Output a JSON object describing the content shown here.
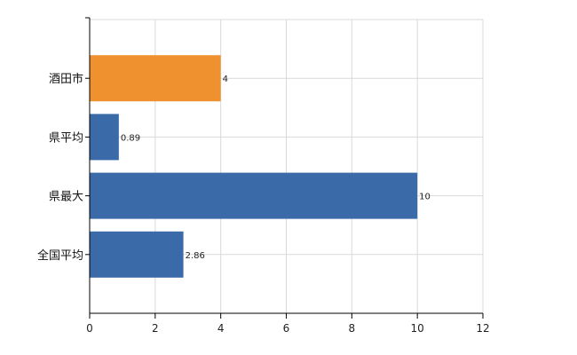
{
  "chart_data": {
    "type": "bar",
    "orientation": "horizontal",
    "categories": [
      "酒田市",
      "県平均",
      "県最大",
      "全国平均"
    ],
    "values": [
      4,
      0.89,
      10,
      2.86
    ],
    "value_labels": [
      "4",
      "0.89",
      "10",
      "2.86"
    ],
    "bar_colors": [
      "#F0912F",
      "#3B6AA8",
      "#3B6AA8",
      "#3B6AA8"
    ],
    "xlim": [
      0,
      12
    ],
    "xticks": [
      0,
      2,
      4,
      6,
      8,
      10,
      12
    ],
    "xtick_labels": [
      "0",
      "2",
      "4",
      "6",
      "8",
      "10",
      "12"
    ],
    "grid": true,
    "title": "",
    "xlabel": "",
    "ylabel": ""
  },
  "colors": {
    "grid": "#D9D9D9",
    "axis": "#000000"
  }
}
